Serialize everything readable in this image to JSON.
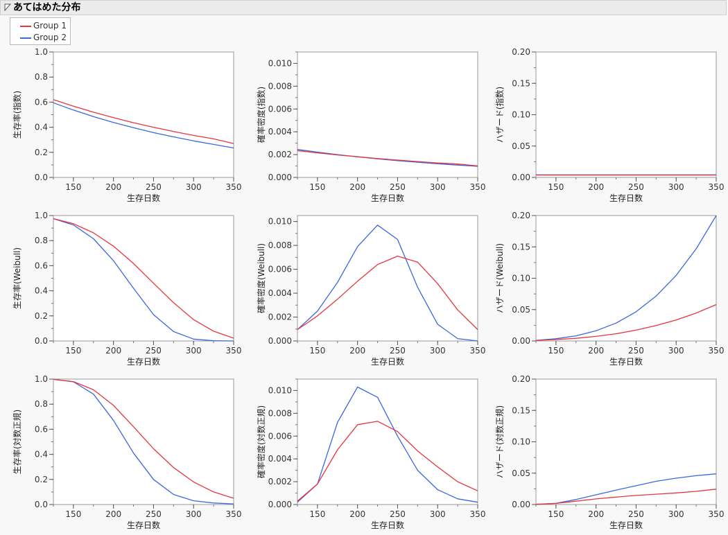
{
  "header": {
    "title": "あてはめた分布",
    "toggle_icon": "disclosure-triangle-down-icon"
  },
  "legend": {
    "items": [
      {
        "label": "Group 1",
        "color": "#e8343f"
      },
      {
        "label": "Group 2",
        "color": "#3b66e0"
      }
    ]
  },
  "chart_data": [
    {
      "type": "line",
      "ylabel": "生存率(指数)",
      "xlabel": "生存日数",
      "xlim": [
        125,
        350
      ],
      "ylim": [
        0,
        1.0
      ],
      "xticks": [
        "150",
        "200",
        "250",
        "300",
        "350"
      ],
      "yticks": [
        "0.0",
        "0.2",
        "0.4",
        "0.6",
        "0.8",
        "1.0"
      ],
      "x": [
        125,
        150,
        175,
        200,
        225,
        250,
        275,
        300,
        325,
        350
      ],
      "series": [
        {
          "name": "Group 1",
          "values": [
            0.62,
            0.568,
            0.52,
            0.476,
            0.436,
            0.4,
            0.366,
            0.335,
            0.307,
            0.27
          ]
        },
        {
          "name": "Group 2",
          "values": [
            0.595,
            0.537,
            0.485,
            0.438,
            0.396,
            0.357,
            0.323,
            0.291,
            0.263,
            0.235
          ]
        }
      ]
    },
    {
      "type": "line",
      "ylabel": "確率密度(指数)",
      "xlabel": "生存日数",
      "xlim": [
        125,
        350
      ],
      "ylim": [
        0,
        0.011
      ],
      "xticks": [
        "150",
        "200",
        "250",
        "300",
        "350"
      ],
      "yticks": [
        "0.000",
        "0.002",
        "0.004",
        "0.006",
        "0.008",
        "0.010"
      ],
      "x": [
        125,
        150,
        175,
        200,
        225,
        250,
        275,
        300,
        325,
        350
      ],
      "series": [
        {
          "name": "Group 1",
          "values": [
            0.00235,
            0.00215,
            0.00197,
            0.00181,
            0.00165,
            0.00152,
            0.00139,
            0.00127,
            0.00117,
            0.00101
          ]
        },
        {
          "name": "Group 2",
          "values": [
            0.00245,
            0.00222,
            0.002,
            0.00181,
            0.00163,
            0.00147,
            0.00133,
            0.0012,
            0.00108,
            0.00097
          ]
        }
      ]
    },
    {
      "type": "line",
      "ylabel": "ハザード(指数)",
      "xlabel": "生存日数",
      "xlim": [
        125,
        350
      ],
      "ylim": [
        0,
        0.2
      ],
      "xticks": [
        "150",
        "200",
        "250",
        "300",
        "350"
      ],
      "yticks": [
        "0.00",
        "0.05",
        "0.10",
        "0.15",
        "0.20"
      ],
      "x": [
        125,
        350
      ],
      "series": [
        {
          "name": "Group 1",
          "values": [
            0.0038,
            0.0038
          ]
        },
        {
          "name": "Group 2",
          "values": [
            0.0041,
            0.0041
          ]
        }
      ]
    },
    {
      "type": "line",
      "ylabel": "生存率(Weibull)",
      "xlabel": "生存日数",
      "xlim": [
        125,
        350
      ],
      "ylim": [
        0,
        1.0
      ],
      "xticks": [
        "150",
        "200",
        "250",
        "300",
        "350"
      ],
      "yticks": [
        "0.0",
        "0.2",
        "0.4",
        "0.6",
        "0.8",
        "1.0"
      ],
      "x": [
        125,
        150,
        175,
        200,
        225,
        250,
        275,
        300,
        325,
        350
      ],
      "series": [
        {
          "name": "Group 1",
          "values": [
            0.975,
            0.935,
            0.862,
            0.755,
            0.617,
            0.46,
            0.305,
            0.17,
            0.078,
            0.022
          ]
        },
        {
          "name": "Group 2",
          "values": [
            0.975,
            0.925,
            0.815,
            0.64,
            0.42,
            0.21,
            0.075,
            0.015,
            0.002,
            0.0
          ]
        }
      ]
    },
    {
      "type": "line",
      "ylabel": "確率密度(Weibull)",
      "xlabel": "生存日数",
      "xlim": [
        125,
        350
      ],
      "ylim": [
        0,
        0.0105
      ],
      "xticks": [
        "150",
        "200",
        "250",
        "300",
        "350"
      ],
      "yticks": [
        "0.000",
        "0.002",
        "0.004",
        "0.006",
        "0.008",
        "0.010"
      ],
      "x": [
        125,
        150,
        175,
        200,
        225,
        250,
        275,
        300,
        325,
        350
      ],
      "series": [
        {
          "name": "Group 1",
          "values": [
            0.00095,
            0.0021,
            0.0035,
            0.005,
            0.0064,
            0.0071,
            0.0066,
            0.0048,
            0.0026,
            0.00095
          ]
        },
        {
          "name": "Group 2",
          "values": [
            0.00095,
            0.0025,
            0.0049,
            0.0079,
            0.0097,
            0.0085,
            0.0045,
            0.0014,
            0.0002,
            0.0
          ]
        }
      ]
    },
    {
      "type": "line",
      "ylabel": "ハザード(Weibull)",
      "xlabel": "生存日数",
      "xlim": [
        125,
        350
      ],
      "ylim": [
        0,
        0.2
      ],
      "xticks": [
        "150",
        "200",
        "250",
        "300",
        "350"
      ],
      "yticks": [
        "0.00",
        "0.05",
        "0.10",
        "0.15",
        "0.20"
      ],
      "x": [
        125,
        150,
        175,
        200,
        225,
        250,
        275,
        300,
        325,
        350
      ],
      "series": [
        {
          "name": "Group 1",
          "values": [
            0.001,
            0.0022,
            0.0042,
            0.0073,
            0.0115,
            0.0172,
            0.0245,
            0.0335,
            0.0445,
            0.058
          ]
        },
        {
          "name": "Group 2",
          "values": [
            0.001,
            0.0035,
            0.0082,
            0.0162,
            0.0285,
            0.0465,
            0.0715,
            0.1045,
            0.147,
            0.2
          ]
        }
      ]
    },
    {
      "type": "line",
      "ylabel": "生存率(対数正規)",
      "xlabel": "生存日数",
      "xlim": [
        125,
        350
      ],
      "ylim": [
        0,
        1.0
      ],
      "xticks": [
        "150",
        "200",
        "250",
        "300",
        "350"
      ],
      "yticks": [
        "0.0",
        "0.2",
        "0.4",
        "0.6",
        "0.8",
        "1.0"
      ],
      "x": [
        125,
        150,
        175,
        200,
        225,
        250,
        275,
        300,
        325,
        350
      ],
      "series": [
        {
          "name": "Group 1",
          "values": [
            0.998,
            0.98,
            0.915,
            0.79,
            0.62,
            0.445,
            0.295,
            0.18,
            0.1,
            0.05
          ]
        },
        {
          "name": "Group 2",
          "values": [
            0.998,
            0.978,
            0.88,
            0.67,
            0.41,
            0.2,
            0.08,
            0.03,
            0.012,
            0.005
          ]
        }
      ]
    },
    {
      "type": "line",
      "ylabel": "確率密度(対数正規)",
      "xlabel": "生存日数",
      "xlim": [
        125,
        350
      ],
      "ylim": [
        0,
        0.011
      ],
      "xticks": [
        "150",
        "200",
        "250",
        "300",
        "350"
      ],
      "yticks": [
        "0.000",
        "0.002",
        "0.004",
        "0.006",
        "0.008",
        "0.010"
      ],
      "x": [
        125,
        150,
        175,
        200,
        225,
        250,
        275,
        300,
        325,
        350
      ],
      "series": [
        {
          "name": "Group 1",
          "values": [
            0.0003,
            0.0018,
            0.0048,
            0.007,
            0.0073,
            0.0064,
            0.0047,
            0.0033,
            0.002,
            0.0012
          ]
        },
        {
          "name": "Group 2",
          "values": [
            0.0002,
            0.0018,
            0.0072,
            0.0103,
            0.0094,
            0.006,
            0.003,
            0.0013,
            0.0005,
            0.0002
          ]
        }
      ]
    },
    {
      "type": "line",
      "ylabel": "ハザード(対数正規)",
      "xlabel": "生存日数",
      "xlim": [
        125,
        350
      ],
      "ylim": [
        0,
        0.2
      ],
      "xticks": [
        "150",
        "200",
        "250",
        "300",
        "350"
      ],
      "yticks": [
        "0.00",
        "0.05",
        "0.10",
        "0.15",
        "0.20"
      ],
      "x": [
        125,
        150,
        175,
        200,
        225,
        250,
        275,
        300,
        325,
        350
      ],
      "series": [
        {
          "name": "Group 1",
          "values": [
            0.0003,
            0.0018,
            0.0053,
            0.009,
            0.0118,
            0.0145,
            0.0165,
            0.0185,
            0.021,
            0.0245
          ]
        },
        {
          "name": "Group 2",
          "values": [
            0.0002,
            0.0019,
            0.008,
            0.0155,
            0.023,
            0.03,
            0.037,
            0.042,
            0.046,
            0.049
          ]
        }
      ]
    }
  ]
}
